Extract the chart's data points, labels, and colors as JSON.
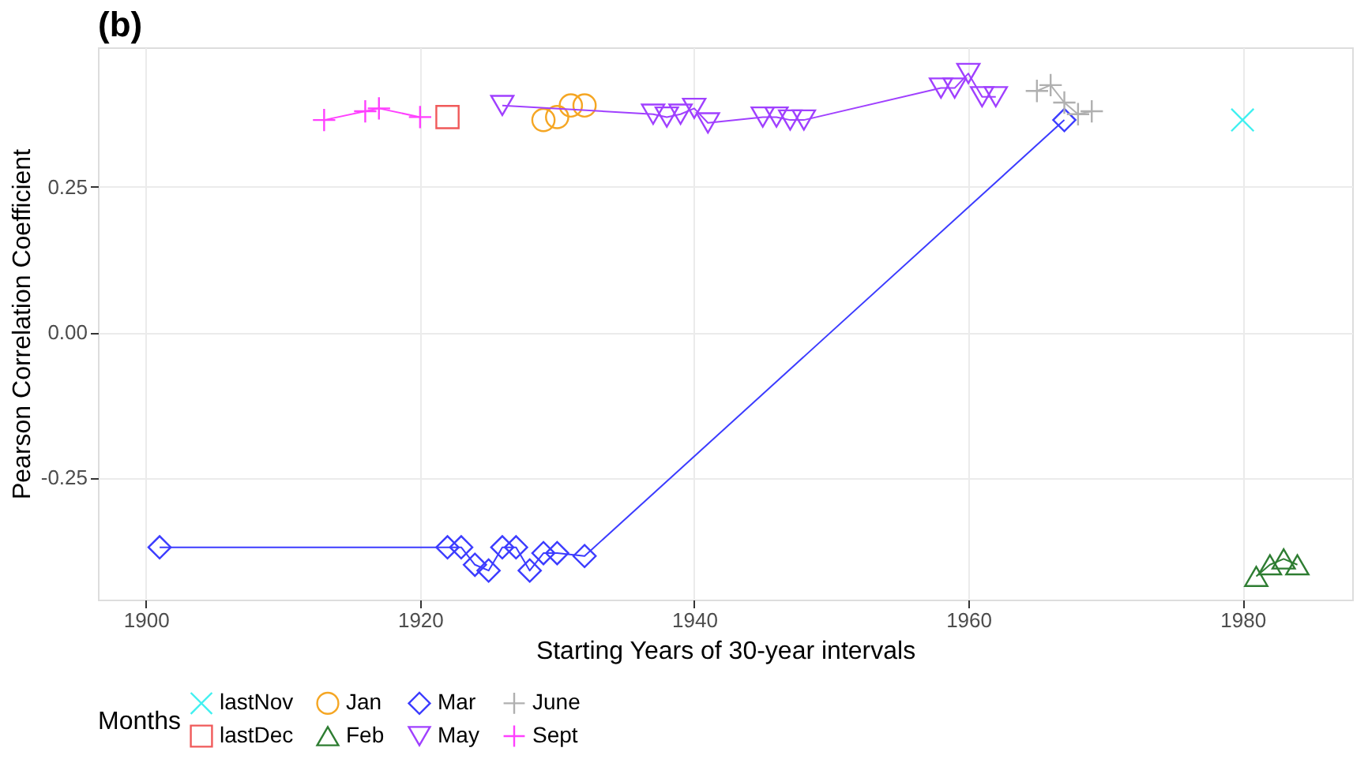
{
  "chart_data": {
    "type": "scatter",
    "title": "(b)",
    "xlabel": "Starting Years of 30-year intervals",
    "ylabel": "Pearson Correlation Coefficient",
    "legend_title": "Months",
    "xlim": [
      1896.5,
      1988
    ],
    "xticks": [
      1900,
      1920,
      1940,
      1960,
      1980
    ],
    "ylim": [
      -0.46,
      0.49
    ],
    "yticks": [
      {
        "value": -0.25,
        "label": "-0.25"
      },
      {
        "value": 0,
        "label": "0.00"
      },
      {
        "value": 0.25,
        "label": "0.25"
      }
    ],
    "grid": true,
    "legend": "bottom",
    "series": [
      {
        "name": "lastNov",
        "type": "scatter",
        "marker": "x",
        "color": "#40f0f0",
        "x": [
          1980
        ],
        "values": [
          0.365
        ]
      },
      {
        "name": "lastDec",
        "type": "scatter",
        "marker": "square",
        "color": "#f05a5a",
        "x": [
          1922
        ],
        "values": [
          0.37
        ]
      },
      {
        "name": "Jan",
        "type": "scatter",
        "marker": "circle",
        "color": "#f5a623",
        "x": [
          1929,
          1930,
          1931,
          1932
        ],
        "values": [
          0.365,
          0.37,
          0.39,
          0.39
        ]
      },
      {
        "name": "Feb",
        "type": "line",
        "marker": "triangle",
        "color": "#2e7d32",
        "x": [
          1981,
          1982,
          1983,
          1984
        ],
        "values": [
          -0.42,
          -0.4,
          -0.39,
          -0.4
        ]
      },
      {
        "name": "Mar",
        "type": "line",
        "marker": "diamond",
        "color": "#3c3cff",
        "x": [
          1901,
          1922,
          1923,
          1924,
          1925,
          1926,
          1927,
          1928,
          1929,
          1930,
          1932,
          1967
        ],
        "values": [
          -0.37,
          -0.37,
          -0.37,
          -0.4,
          -0.41,
          -0.37,
          -0.37,
          -0.41,
          -0.38,
          -0.38,
          -0.385,
          0.365
        ]
      },
      {
        "name": "May",
        "type": "line",
        "marker": "triangle-down",
        "color": "#a040ff",
        "x": [
          1926,
          1937,
          1938,
          1939,
          1940,
          1941,
          1945,
          1946,
          1947,
          1948,
          1958,
          1959,
          1960,
          1961,
          1962
        ],
        "values": [
          0.39,
          0.375,
          0.37,
          0.375,
          0.385,
          0.36,
          0.37,
          0.37,
          0.365,
          0.365,
          0.42,
          0.42,
          0.445,
          0.405,
          0.405
        ]
      },
      {
        "name": "June",
        "type": "line",
        "marker": "cross",
        "color": "#b0b0b0",
        "x": [
          1965,
          1966,
          1967,
          1968,
          1969
        ],
        "values": [
          0.415,
          0.425,
          0.395,
          0.375,
          0.38
        ]
      },
      {
        "name": "Sept",
        "type": "line",
        "marker": "cross",
        "color": "#ff40ff",
        "x": [
          1913,
          1916,
          1917,
          1920
        ],
        "values": [
          0.365,
          0.38,
          0.385,
          0.37
        ]
      }
    ]
  }
}
